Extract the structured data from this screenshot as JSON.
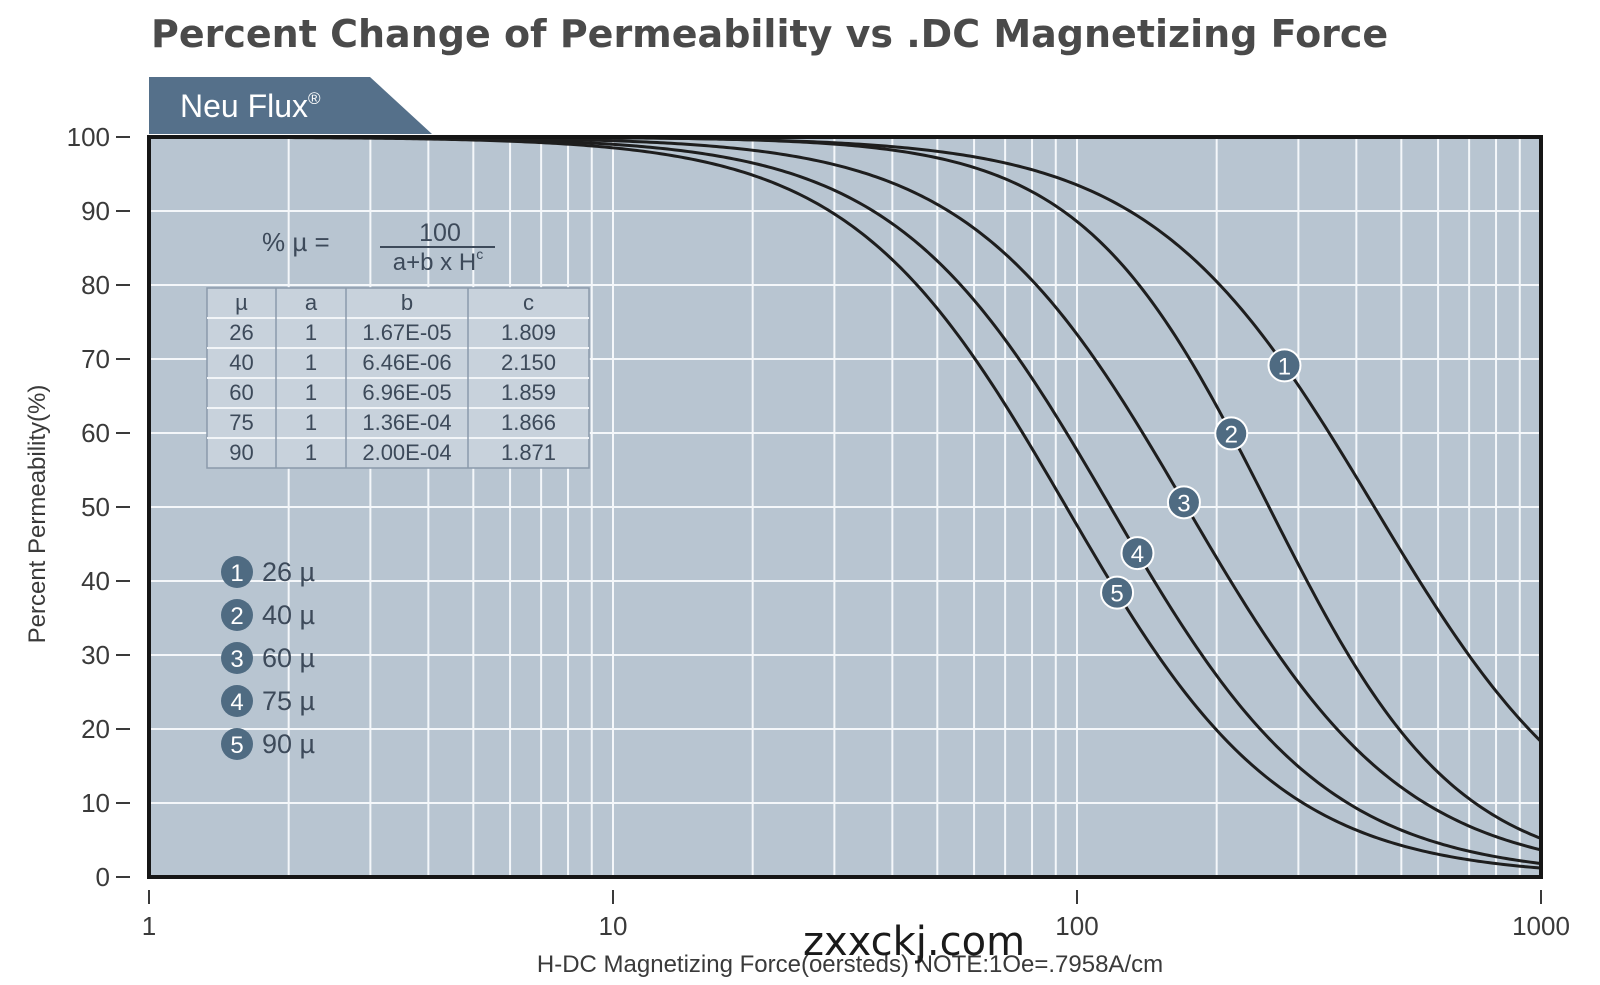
{
  "chart_data": {
    "type": "line",
    "title": "Percent Change of Permeability vs .DC Magnetizing Force",
    "brand": "Neu Flux",
    "brand_mark": "®",
    "xlabel": "H-DC Magnetizing Force(oersteds) NOTE:1Oe=.7958A/cm",
    "ylabel": "Percent Permeability(%)",
    "x_scale": "log",
    "xlim": [
      1,
      1000
    ],
    "ylim": [
      0,
      100
    ],
    "x_ticks": [
      "1",
      "10",
      "100",
      "1000"
    ],
    "y_ticks": [
      "0",
      "10",
      "20",
      "30",
      "40",
      "50",
      "60",
      "70",
      "80",
      "90",
      "100"
    ],
    "grid": true,
    "formula": {
      "lhs": "% µ =",
      "numerator": "100",
      "denominator": "a+b x H",
      "exponent": "c"
    },
    "table": {
      "headers": [
        "µ",
        "a",
        "b",
        "c"
      ],
      "rows": [
        [
          "26",
          "1",
          "1.67E-05",
          "1.809"
        ],
        [
          "40",
          "1",
          "6.46E-06",
          "2.150"
        ],
        [
          "60",
          "1",
          "6.96E-05",
          "1.859"
        ],
        [
          "75",
          "1",
          "1.36E-04",
          "1.866"
        ],
        [
          "90",
          "1",
          "2.00E-04",
          "1.871"
        ]
      ]
    },
    "series": [
      {
        "marker": "1",
        "name": "26 µ",
        "a": 1,
        "b": 1.67e-05,
        "c": 1.809,
        "label_x": 280
      },
      {
        "marker": "2",
        "name": "40 µ",
        "a": 1,
        "b": 6.46e-06,
        "c": 2.15,
        "label_x": 215
      },
      {
        "marker": "3",
        "name": "60 µ",
        "a": 1,
        "b": 6.96e-05,
        "c": 1.859,
        "label_x": 170
      },
      {
        "marker": "4",
        "name": "75 µ",
        "a": 1,
        "b": 0.000136,
        "c": 1.866,
        "label_x": 135
      },
      {
        "marker": "5",
        "name": "90 µ",
        "a": 1,
        "b": 0.0002,
        "c": 1.871,
        "label_x": 122
      }
    ],
    "legend_position": "left-middle",
    "curve_color": "#1e1e1e",
    "marker_color": "#4f6b82",
    "plot_background": "#b8c5d1",
    "banner_color": "#55708a"
  },
  "watermark": "zxxckj.com"
}
